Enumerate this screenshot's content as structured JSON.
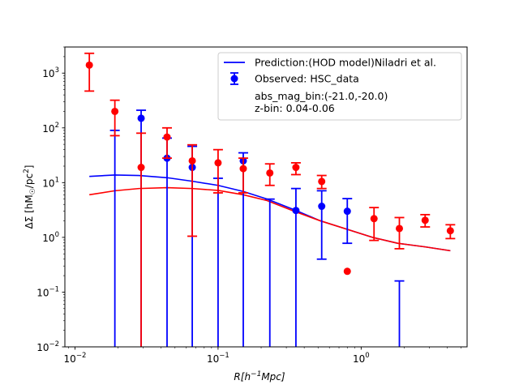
{
  "chart_data": {
    "type": "scatter",
    "title": "",
    "xlabel": "R[h^{-1}Mpc]",
    "ylabel": "ΔΣ [hM☉/pc²]",
    "xscale": "log",
    "yscale": "log",
    "xlim": [
      0.0085,
      5.5
    ],
    "ylim": [
      0.01,
      3000
    ],
    "x_ticks": [
      {
        "value": 0.01,
        "base": "10",
        "exp": "−2"
      },
      {
        "value": 0.1,
        "base": "10",
        "exp": "−1"
      },
      {
        "value": 1,
        "base": "10",
        "exp": "0"
      }
    ],
    "y_ticks": [
      {
        "value": 0.01,
        "base": "10",
        "exp": "−2"
      },
      {
        "value": 0.1,
        "base": "10",
        "exp": "−1"
      },
      {
        "value": 1,
        "base": "10",
        "exp": "0"
      },
      {
        "value": 10,
        "base": "10",
        "exp": "1"
      },
      {
        "value": 100,
        "base": "10",
        "exp": "2"
      },
      {
        "value": 1000,
        "base": "10",
        "exp": "3"
      }
    ],
    "grid": false,
    "legend": {
      "position": "top-right",
      "entries": [
        {
          "label": "Prediction:(HOD model)Niladri et al.",
          "color": "#0000ff",
          "kind": "line"
        },
        {
          "label": "Observed: HSC_data",
          "color": "#0000ff",
          "kind": "errorbar"
        }
      ],
      "extra_text": [
        "abs_mag_bin:(-21.0,-20.0)",
        "z-bin: 0.04-0.06"
      ]
    },
    "series": [
      {
        "name": "Prediction:(HOD model)Niladri et al.",
        "kind": "line",
        "color": "#0000ff",
        "x": [
          0.0126,
          0.019,
          0.028,
          0.044,
          0.066,
          0.1,
          0.15,
          0.22,
          0.34,
          0.52,
          0.8,
          1.2,
          1.8,
          2.8,
          4.2
        ],
        "y": [
          13.0,
          13.8,
          13.5,
          12.3,
          10.6,
          8.9,
          6.9,
          5.0,
          3.2,
          2.0,
          1.4,
          1.0,
          0.78,
          0.67,
          0.57
        ]
      },
      {
        "name": "",
        "kind": "line",
        "color": "#ff0000",
        "x": [
          0.0126,
          0.019,
          0.028,
          0.044,
          0.066,
          0.1,
          0.15,
          0.22,
          0.34,
          0.52,
          0.8,
          1.2,
          1.8,
          2.8,
          4.2
        ],
        "y": [
          6.0,
          7.1,
          7.8,
          8.1,
          7.8,
          7.2,
          6.0,
          4.7,
          3.0,
          2.0,
          1.4,
          1.0,
          0.78,
          0.67,
          0.57
        ]
      },
      {
        "name": "Observed: HSC_data",
        "kind": "errorbar",
        "color": "#0000ff",
        "points": [
          {
            "x": 0.019,
            "y": 0.01,
            "lo": 0.01,
            "hi": 90
          },
          {
            "x": 0.029,
            "y": 150,
            "lo": 0.01,
            "hi": 210
          },
          {
            "x": 0.044,
            "y": 28,
            "lo": 0.01,
            "hi": 65
          },
          {
            "x": 0.066,
            "y": 19,
            "lo": 0.01,
            "hi": 46
          },
          {
            "x": 0.1,
            "y": 0.01,
            "lo": 0.01,
            "hi": 12
          },
          {
            "x": 0.15,
            "y": 25,
            "lo": 0.01,
            "hi": 35
          },
          {
            "x": 0.23,
            "y": 0.01,
            "lo": 0.01,
            "hi": 5
          },
          {
            "x": 0.35,
            "y": 3.1,
            "lo": 0.01,
            "hi": 7.8
          },
          {
            "x": 0.53,
            "y": 3.7,
            "lo": 0.4,
            "hi": 7.1
          },
          {
            "x": 0.8,
            "y": 3.0,
            "lo": 0.78,
            "hi": 5.1
          },
          {
            "x": 1.85,
            "y": 0.01,
            "lo": 0.01,
            "hi": 0.16
          }
        ]
      },
      {
        "name": "",
        "kind": "errorbar",
        "color": "#ff0000",
        "points": [
          {
            "x": 0.0126,
            "y": 1400,
            "lo": 470,
            "hi": 2300
          },
          {
            "x": 0.019,
            "y": 200,
            "lo": 72,
            "hi": 320
          },
          {
            "x": 0.029,
            "y": 19,
            "lo": 0.01,
            "hi": 80
          },
          {
            "x": 0.044,
            "y": 68,
            "lo": 28,
            "hi": 100
          },
          {
            "x": 0.066,
            "y": 25,
            "lo": 1.05,
            "hi": 49
          },
          {
            "x": 0.1,
            "y": 23,
            "lo": 6.5,
            "hi": 40
          },
          {
            "x": 0.15,
            "y": 18,
            "lo": 6.5,
            "hi": 28
          },
          {
            "x": 0.23,
            "y": 15,
            "lo": 8.9,
            "hi": 22
          },
          {
            "x": 0.35,
            "y": 19,
            "lo": 14,
            "hi": 23
          },
          {
            "x": 0.53,
            "y": 10.5,
            "lo": 7.8,
            "hi": 13.5
          },
          {
            "x": 0.8,
            "y": 0.24,
            "lo": 0.01,
            "hi": 0.01
          },
          {
            "x": 1.23,
            "y": 2.2,
            "lo": 0.88,
            "hi": 3.5
          },
          {
            "x": 1.85,
            "y": 1.45,
            "lo": 0.62,
            "hi": 2.3
          },
          {
            "x": 2.8,
            "y": 2.05,
            "lo": 1.55,
            "hi": 2.6
          },
          {
            "x": 4.2,
            "y": 1.32,
            "lo": 0.95,
            "hi": 1.7
          }
        ]
      }
    ]
  }
}
